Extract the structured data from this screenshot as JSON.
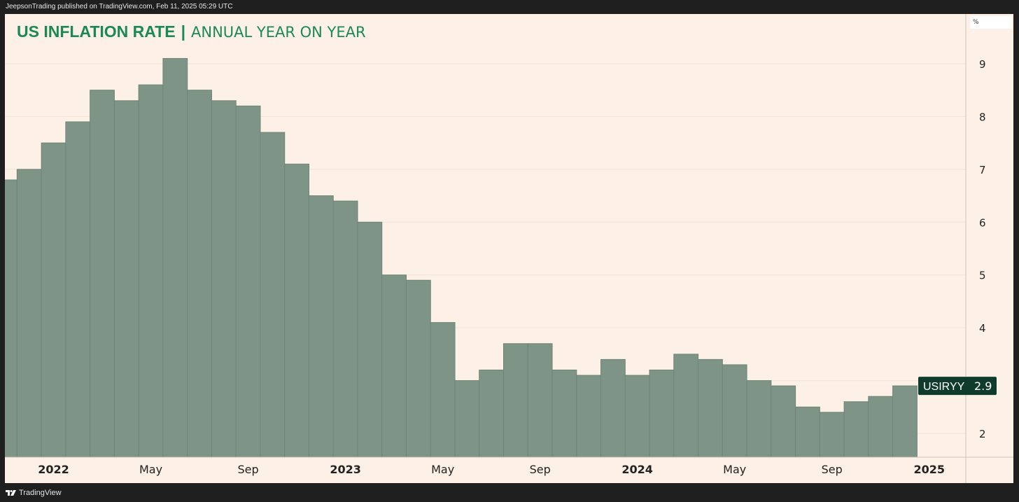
{
  "header": {
    "published": "JeepsonTrading published on TradingView.com, Feb 11, 2025 05:29 UTC"
  },
  "footer": {
    "brand": "TradingView"
  },
  "title": {
    "main": "US INFLATION RATE",
    "separator": "|",
    "subtitle": "ANNUAL YEAR ON YEAR"
  },
  "price_axis": {
    "unit": "%"
  },
  "colors": {
    "bar_fill": "#7e9486",
    "bar_stroke": "#6f8577",
    "background": "#fdf0e6",
    "title": "#1a8a52",
    "label_bg": "#0f3b2c"
  },
  "chart_data": {
    "type": "bar",
    "ticker_label": "USIRYY",
    "last_value": "2.9",
    "categories": [
      "2021-11",
      "2021-12",
      "2022-01",
      "2022-02",
      "2022-03",
      "2022-04",
      "2022-05",
      "2022-06",
      "2022-07",
      "2022-08",
      "2022-09",
      "2022-10",
      "2022-11",
      "2022-12",
      "2023-01",
      "2023-02",
      "2023-03",
      "2023-04",
      "2023-05",
      "2023-06",
      "2023-07",
      "2023-08",
      "2023-09",
      "2023-10",
      "2023-11",
      "2023-12",
      "2024-01",
      "2024-02",
      "2024-03",
      "2024-04",
      "2024-05",
      "2024-06",
      "2024-07",
      "2024-08",
      "2024-09",
      "2024-10",
      "2024-11",
      "2024-12"
    ],
    "values": [
      6.8,
      7.0,
      7.5,
      7.9,
      8.5,
      8.3,
      8.6,
      9.1,
      8.5,
      8.3,
      8.2,
      7.7,
      7.1,
      6.5,
      6.4,
      6.0,
      5.0,
      4.9,
      4.1,
      3.0,
      3.2,
      3.7,
      3.7,
      3.2,
      3.1,
      3.4,
      3.1,
      3.2,
      3.5,
      3.4,
      3.3,
      3.0,
      2.9,
      2.5,
      2.4,
      2.6,
      2.7,
      2.9
    ],
    "x_tick_labels": [
      "2022",
      "May",
      "Sep",
      "2023",
      "May",
      "Sep",
      "2024",
      "May",
      "Sep",
      "2025"
    ],
    "y_tick_labels": [
      "2",
      "3",
      "4",
      "5",
      "6",
      "7",
      "8",
      "9"
    ],
    "ylim": [
      1.5,
      9.9
    ],
    "grid": true
  }
}
